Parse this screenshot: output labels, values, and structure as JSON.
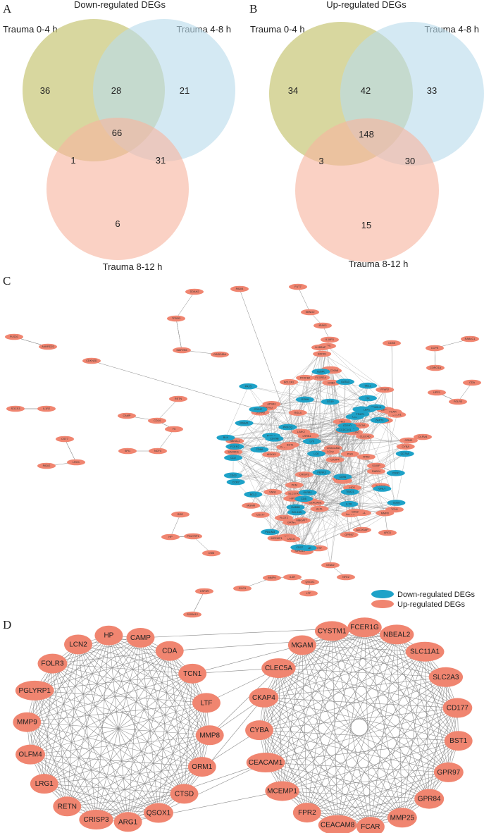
{
  "colors": {
    "set1": "#c9c77a",
    "set2": "#b9dcec",
    "set3": "#f7b4a0",
    "down": "#1ea2c8",
    "up": "#f08570",
    "edge": "#8a8a8a"
  },
  "panelA": {
    "label": "A",
    "title": "Down-regulated DEGs",
    "set1": "Trauma 0-4 h",
    "set2": "Trauma 4-8 h",
    "set3": "Trauma 8-12 h",
    "counts": {
      "only1": "36",
      "only2": "21",
      "only3": "6",
      "ab": "28",
      "ac": "1",
      "bc": "31",
      "abc": "66"
    }
  },
  "panelB": {
    "label": "B",
    "title": "Up-regulated DEGs",
    "set1": "Trauma 0-4 h",
    "set2": "Trauma 4-8 h",
    "set3": "Trauma 8-12 h",
    "counts": {
      "only1": "34",
      "only2": "33",
      "only3": "15",
      "ab": "42",
      "ac": "3",
      "bc": "30",
      "abc": "148"
    }
  },
  "panelC": {
    "label": "C",
    "legend": {
      "down": "Down-regulated DEGs",
      "up": "Up-regulated DEGs"
    },
    "nodes": [
      {
        "t": "PLSD1",
        "c": "up"
      },
      {
        "t": "ANKRD22",
        "c": "up"
      },
      {
        "t": "CDKN2D",
        "c": "up"
      },
      {
        "t": "TP53I3",
        "c": "up"
      },
      {
        "t": "MAP2K6",
        "c": "up"
      },
      {
        "t": "GADD45A",
        "c": "up"
      },
      {
        "t": "DDAH2",
        "c": "up"
      },
      {
        "t": "PADI4",
        "c": "up"
      },
      {
        "t": "FUT7",
        "c": "up"
      },
      {
        "t": "SBNO2",
        "c": "up"
      },
      {
        "t": "IRAK3",
        "c": "up"
      },
      {
        "t": "IL18R1",
        "c": "up"
      },
      {
        "t": "JUNB",
        "c": "up"
      },
      {
        "t": "IL18RAP",
        "c": "up"
      },
      {
        "t": "CD55",
        "c": "up"
      },
      {
        "t": "CCPE",
        "c": "up"
      },
      {
        "t": "RAB4C1",
        "c": "up"
      },
      {
        "t": "SOCS3",
        "c": "up"
      },
      {
        "t": "IL1R2",
        "c": "up"
      },
      {
        "t": "CST7",
        "c": "up"
      },
      {
        "t": "PADI2",
        "c": "up"
      },
      {
        "t": "LRG1",
        "c": "up"
      },
      {
        "t": "CAMP",
        "c": "up"
      },
      {
        "t": "SPI1",
        "c": "up"
      },
      {
        "t": "CD14",
        "c": "up"
      },
      {
        "t": "NCF4",
        "c": "up"
      },
      {
        "t": "BSG",
        "c": "up"
      },
      {
        "t": "HP",
        "c": "up"
      },
      {
        "t": "PGLYRP1",
        "c": "up"
      },
      {
        "t": "OSM",
        "c": "up"
      },
      {
        "t": "MMP9",
        "c": "up"
      },
      {
        "t": "GYG1",
        "c": "up"
      },
      {
        "t": "IL4R",
        "c": "up"
      },
      {
        "t": "NFE2",
        "c": "up"
      },
      {
        "t": "DNAI2",
        "c": "up"
      },
      {
        "t": "DYSF",
        "c": "up"
      },
      {
        "t": "QSOX1",
        "c": "up"
      },
      {
        "t": "LTF",
        "c": "up"
      },
      {
        "t": "S100A12",
        "c": "up"
      },
      {
        "t": "CSF3R",
        "c": "up"
      },
      {
        "t": "CORO1A",
        "c": "up"
      },
      {
        "t": "UPP1",
        "c": "up"
      },
      {
        "t": "CDA",
        "c": "up"
      },
      {
        "t": "FOLR3",
        "c": "up"
      },
      {
        "t": "OLFM4",
        "c": "up"
      },
      {
        "t": "ORM1",
        "c": "up"
      },
      {
        "t": "TCN1",
        "c": "up"
      },
      {
        "t": "ARG1",
        "c": "up"
      },
      {
        "t": "HCK",
        "c": "up"
      },
      {
        "t": "IGF1R",
        "c": "up"
      },
      {
        "t": "ALOX5AP",
        "c": "up"
      },
      {
        "t": "RETN",
        "c": "up"
      },
      {
        "t": "F5",
        "c": "up"
      },
      {
        "t": "MMP8",
        "c": "up"
      },
      {
        "t": "LCN2",
        "c": "up"
      },
      {
        "t": "CKAP4",
        "c": "up"
      },
      {
        "t": "FCGR2A",
        "c": "up"
      },
      {
        "t": "ARRB2",
        "c": "up"
      },
      {
        "t": "HIP1",
        "c": "up"
      },
      {
        "t": "CTSD",
        "c": "up"
      },
      {
        "t": "PGD",
        "c": "up"
      },
      {
        "t": "CRISP3",
        "c": "up"
      },
      {
        "t": "SPP1",
        "c": "up"
      },
      {
        "t": "HK3",
        "c": "up"
      },
      {
        "t": "SLC11A1",
        "c": "up"
      },
      {
        "t": "CXCR1",
        "c": "up"
      },
      {
        "t": "FCER1G",
        "c": "up"
      },
      {
        "t": "ANXA3",
        "c": "up"
      },
      {
        "t": "CLEC5A",
        "c": "up"
      },
      {
        "t": "CYBA",
        "c": "up"
      },
      {
        "t": "CEACAM8",
        "c": "up"
      },
      {
        "t": "FCAR",
        "c": "up"
      },
      {
        "t": "PKM",
        "c": "up"
      },
      {
        "t": "BCL2A1",
        "c": "up"
      },
      {
        "t": "CEACAM1",
        "c": "up"
      },
      {
        "t": "FPR2",
        "c": "up"
      },
      {
        "t": "NBEAL2",
        "c": "up"
      },
      {
        "t": "LILRA6",
        "c": "up"
      },
      {
        "t": "CD177",
        "c": "up"
      },
      {
        "t": "MCEMP1",
        "c": "up"
      },
      {
        "t": "PYGL",
        "c": "up"
      },
      {
        "t": "SLC2A3",
        "c": "up"
      },
      {
        "t": "GPR97",
        "c": "up"
      },
      {
        "t": "CLEC4D",
        "c": "up"
      },
      {
        "t": "PFKFB3",
        "c": "up"
      },
      {
        "t": "GPR84",
        "c": "up"
      },
      {
        "t": "CYSTM1",
        "c": "up"
      },
      {
        "t": "LILRA5",
        "c": "up"
      },
      {
        "t": "ALPL",
        "c": "up"
      },
      {
        "t": "BST1",
        "c": "up"
      },
      {
        "t": "PFKFB2",
        "c": "up"
      },
      {
        "t": "VNN1",
        "c": "up"
      },
      {
        "t": "MMP25",
        "c": "up"
      },
      {
        "t": "MGAM",
        "c": "up"
      },
      {
        "t": "FFAR2",
        "c": "up"
      },
      {
        "t": "SAMSN1",
        "c": "up"
      },
      {
        "t": "RGL4",
        "c": "up"
      },
      {
        "t": "GRINA",
        "c": "up"
      },
      {
        "t": "GNB2",
        "c": "up"
      },
      {
        "t": "MBOAT7",
        "c": "up"
      },
      {
        "t": "USCG",
        "c": "up"
      },
      {
        "t": "G0S2",
        "c": "up"
      },
      {
        "t": "ADM",
        "c": "up"
      },
      {
        "t": "S100P",
        "c": "up"
      },
      {
        "t": "APSB1",
        "c": "up"
      },
      {
        "t": "LIMK2",
        "c": "up"
      },
      {
        "t": "LRRB1",
        "c": "up"
      },
      {
        "t": "ACAP1",
        "c": "up"
      },
      {
        "t": "DHRS13",
        "c": "up"
      },
      {
        "t": "SLC37A3",
        "c": "up"
      },
      {
        "t": "SRPK1",
        "c": "up"
      },
      {
        "t": "FLOT2",
        "c": "up"
      },
      {
        "t": "ROPN1L",
        "c": "up"
      },
      {
        "t": "SIPA1L2",
        "c": "up"
      },
      {
        "t": "RAB24",
        "c": "up"
      },
      {
        "t": "SLC26A8",
        "c": "up"
      },
      {
        "t": "PDLIM3",
        "c": "down"
      },
      {
        "t": "PENK3",
        "c": "down"
      },
      {
        "t": "CD40LG",
        "c": "down"
      },
      {
        "t": "CD180",
        "c": "down"
      },
      {
        "t": "EGR1",
        "c": "down"
      },
      {
        "t": "BCL11B",
        "c": "down"
      },
      {
        "t": "GATA3",
        "c": "down"
      },
      {
        "t": "LEF1",
        "c": "down"
      },
      {
        "t": "PAX5",
        "c": "down"
      },
      {
        "t": "NELL2",
        "c": "down"
      },
      {
        "t": "GZMK",
        "c": "down"
      },
      {
        "t": "CD2",
        "c": "down"
      },
      {
        "t": "CCR7",
        "c": "down"
      },
      {
        "t": "LCK",
        "c": "down"
      },
      {
        "t": "IL7R",
        "c": "down"
      },
      {
        "t": "CD3E",
        "c": "down"
      },
      {
        "t": "CD28",
        "c": "down"
      },
      {
        "t": "CD247",
        "c": "down"
      },
      {
        "t": "CD96",
        "c": "down"
      },
      {
        "t": "CD5",
        "c": "down"
      },
      {
        "t": "TBX21",
        "c": "down"
      },
      {
        "t": "GZMH",
        "c": "down"
      },
      {
        "t": "CD8A",
        "c": "down"
      },
      {
        "t": "CD6",
        "c": "down"
      },
      {
        "t": "KLRB1",
        "c": "down"
      },
      {
        "t": "CD79A",
        "c": "down"
      },
      {
        "t": "CD3D",
        "c": "down"
      },
      {
        "t": "ITK",
        "c": "down"
      },
      {
        "t": "BCL2",
        "c": "down"
      },
      {
        "t": "FCRLA",
        "c": "down"
      },
      {
        "t": "MS4A1",
        "c": "down"
      },
      {
        "t": "CD19",
        "c": "down"
      },
      {
        "t": "LY9",
        "c": "down"
      },
      {
        "t": "SELL",
        "c": "down"
      },
      {
        "t": "TRAT1",
        "c": "down"
      },
      {
        "t": "PRKCQ",
        "c": "down"
      },
      {
        "t": "BLK",
        "c": "down"
      },
      {
        "t": "CD22",
        "c": "down"
      },
      {
        "t": "RAB3B",
        "c": "down"
      },
      {
        "t": "ZAP70",
        "c": "down"
      },
      {
        "t": "FCER2",
        "c": "down"
      },
      {
        "t": "CCDC141",
        "c": "down"
      },
      {
        "t": "CD79B",
        "c": "down"
      },
      {
        "t": "CD27",
        "c": "down"
      },
      {
        "t": "GNLY",
        "c": "down"
      }
    ]
  },
  "panelD": {
    "label": "D",
    "left": [
      "HP",
      "CAMP",
      "CDA",
      "TCN1",
      "LTF",
      "MMP8",
      "ORM1",
      "CTSD",
      "QSOX1",
      "ARG1",
      "CRISP3",
      "RETN",
      "LRG1",
      "OLFM4",
      "MMP9",
      "PGLYRP1",
      "FOLR3",
      "LCN2"
    ],
    "right": [
      "NBEAL2",
      "SLC11A1",
      "SLC2A3",
      "CD177",
      "BST1",
      "GPR97",
      "GPR84",
      "MMP25",
      "FCAR",
      "CEACAM8",
      "FPR2",
      "MCEMP1",
      "CEACAM1",
      "CYBA",
      "CKAP4",
      "CLEC5A",
      "MGAM",
      "CYSTM1",
      "FCER1G"
    ]
  }
}
